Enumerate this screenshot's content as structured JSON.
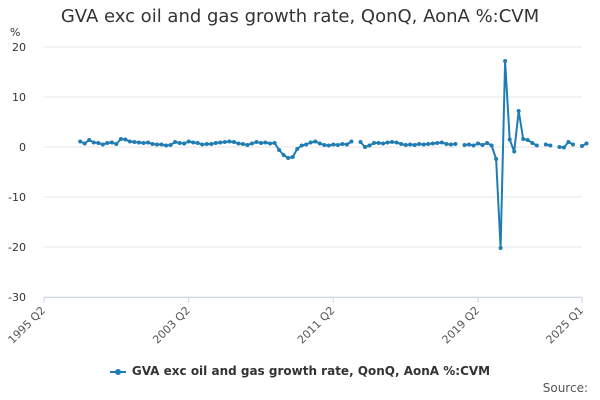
{
  "chart_data": {
    "type": "line",
    "title": "GVA exc oil and gas growth rate, QonQ, AonA %:CVM",
    "ylabel": "%",
    "xlabel": "",
    "ylim": [
      -30,
      20
    ],
    "yticks": [
      20,
      10,
      0,
      -10,
      -20,
      -30
    ],
    "xticks": [
      "1995 Q2",
      "2003 Q2",
      "2011 Q2",
      "2019 Q2",
      "2025 Q1"
    ],
    "x_start": "1995 Q2",
    "x_end": "2025 Q1",
    "legend": "bottom-center",
    "grid": true,
    "series": [
      {
        "name": "GVA exc oil and gas growth rate, QonQ, AonA %:CVM",
        "color": "#1f7db3",
        "start": "1997 Q2",
        "values": [
          1.1,
          0.7,
          1.4,
          0.9,
          0.8,
          0.5,
          0.8,
          0.9,
          0.6,
          1.6,
          1.5,
          1.1,
          1.0,
          0.9,
          0.8,
          0.9,
          0.6,
          0.5,
          0.5,
          0.3,
          0.4,
          1.0,
          0.8,
          0.7,
          1.1,
          0.9,
          0.8,
          0.5,
          0.6,
          0.6,
          0.8,
          0.9,
          1.0,
          1.1,
          1.0,
          0.7,
          0.6,
          0.4,
          0.7,
          1.0,
          0.8,
          0.9,
          0.7,
          0.8,
          -0.6,
          -1.6,
          -2.2,
          -2.0,
          -0.4,
          0.3,
          0.5,
          0.9,
          1.1,
          0.7,
          0.4,
          0.3,
          0.5,
          0.4,
          0.6,
          0.5,
          1.1,
          null,
          1.0,
          0.0,
          0.3,
          0.8,
          0.8,
          0.7,
          0.9,
          1.0,
          0.9,
          0.6,
          0.4,
          0.5,
          0.4,
          0.6,
          0.5,
          0.6,
          0.7,
          0.8,
          0.9,
          0.6,
          0.5,
          0.6,
          null,
          0.4,
          0.5,
          0.3,
          0.7,
          0.4,
          0.8,
          0.3,
          -2.4,
          -20.2,
          17.2,
          1.5,
          -0.9,
          7.2,
          1.6,
          1.4,
          0.8,
          0.3,
          null,
          0.5,
          0.3,
          null,
          0.0,
          -0.1,
          1.0,
          0.5,
          null,
          0.2,
          0.7
        ]
      }
    ]
  },
  "source_label": "Source:"
}
